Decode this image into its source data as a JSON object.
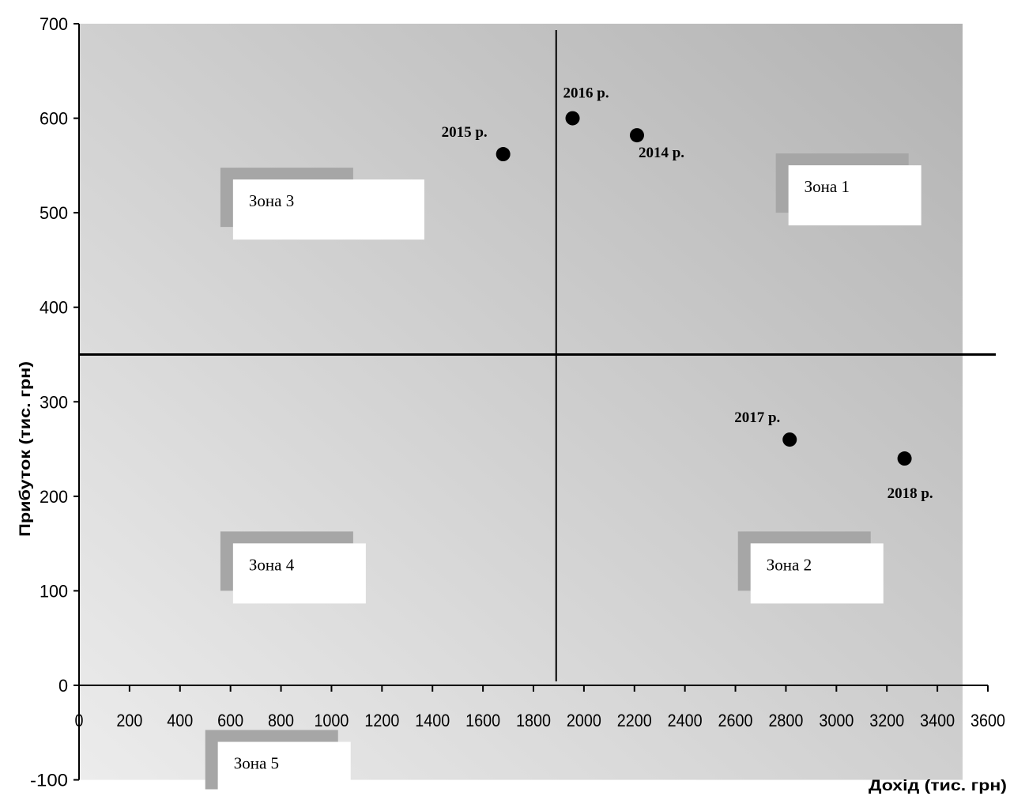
{
  "chart_data": {
    "type": "scatter",
    "xlabel": "Дохід (тис. грн)",
    "ylabel": "Прибуток (тис. грн)",
    "xlim": [
      0,
      3600
    ],
    "ylim": [
      -100,
      700
    ],
    "x_ticks": [
      0,
      200,
      400,
      600,
      800,
      1000,
      1200,
      1400,
      1600,
      1800,
      2000,
      2200,
      2400,
      2600,
      2800,
      3000,
      3200,
      3400,
      3600
    ],
    "y_ticks": [
      -100,
      0,
      100,
      200,
      300,
      400,
      500,
      600,
      700
    ],
    "points": [
      {
        "label": "2014 р.",
        "x": 2210,
        "y": 582
      },
      {
        "label": "2015 р.",
        "x": 1680,
        "y": 562
      },
      {
        "label": "2016 р.",
        "x": 1955,
        "y": 600
      },
      {
        "label": "2017 р.",
        "x": 2815,
        "y": 260
      },
      {
        "label": "2018 р.",
        "x": 3270,
        "y": 240
      }
    ],
    "divider_x": 1890,
    "divider_y": 350,
    "zones": [
      {
        "label": "Зона 1",
        "x": 2760,
        "y": 500
      },
      {
        "label": "Зона 2",
        "x": 2610,
        "y": 100
      },
      {
        "label": "Зона 3",
        "x": 560,
        "y": 485
      },
      {
        "label": "Зона 4",
        "x": 560,
        "y": 100
      },
      {
        "label": "Зона 5",
        "x": 500,
        "y": -110
      }
    ],
    "grid": false,
    "background_colors": [
      "#ececec",
      "#b3b3b3"
    ]
  }
}
